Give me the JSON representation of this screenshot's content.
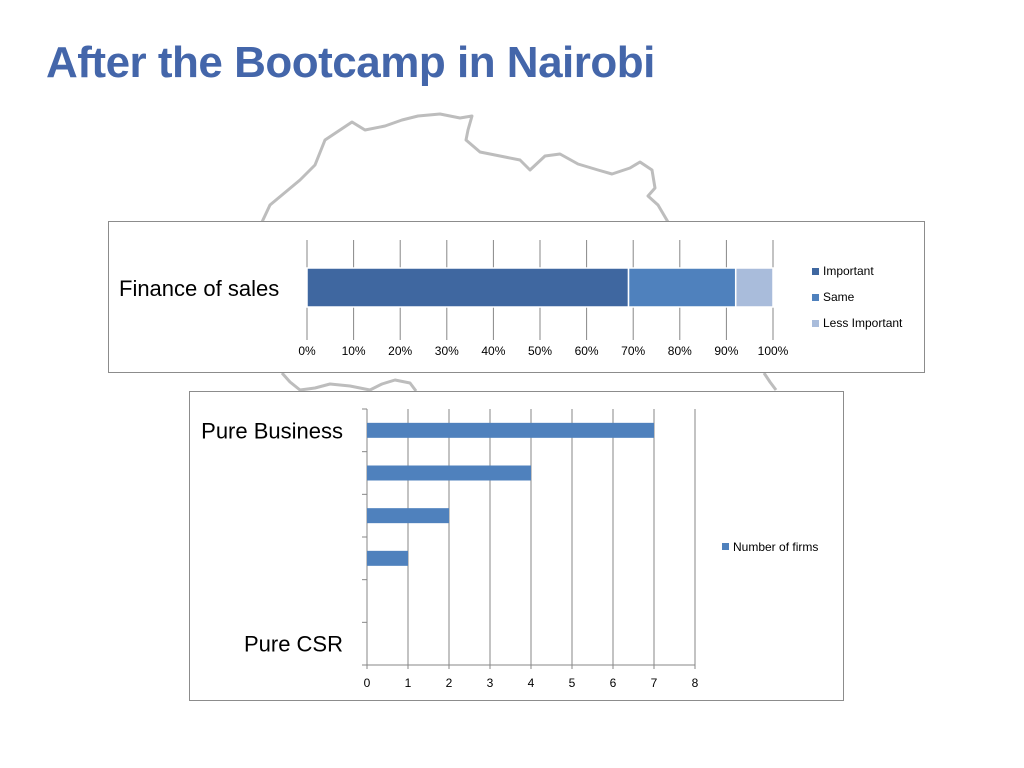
{
  "slide": {
    "title": "After the Bootcamp in Nairobi"
  },
  "colors": {
    "title": "#4466aa",
    "important": "#3f67a0",
    "same": "#4f81bd",
    "less_important": "#a9bcdb",
    "firms": "#4f81bd",
    "map_outline": "#bdbdbd"
  },
  "chart_data": [
    {
      "type": "bar",
      "stacked": true,
      "percent": true,
      "orientation": "horizontal",
      "categories": [
        "Finance of sales"
      ],
      "series": [
        {
          "name": "Important",
          "values": [
            69
          ]
        },
        {
          "name": "Same",
          "values": [
            23
          ]
        },
        {
          "name": "Less Important",
          "values": [
            8
          ]
        }
      ],
      "xlim": [
        0,
        100
      ],
      "xticks": [
        "0%",
        "10%",
        "20%",
        "30%",
        "40%",
        "50%",
        "60%",
        "70%",
        "80%",
        "90%",
        "100%"
      ],
      "grid": true,
      "legend": "right"
    },
    {
      "type": "bar",
      "orientation": "horizontal",
      "categories": [
        "Pure Business",
        "",
        "",
        "",
        "",
        "Pure CSR"
      ],
      "series": [
        {
          "name": "Number of firms",
          "values": [
            7,
            4,
            2,
            1,
            0,
            0
          ]
        }
      ],
      "xlim": [
        0,
        8
      ],
      "xticks": [
        "0",
        "1",
        "2",
        "3",
        "4",
        "5",
        "6",
        "7",
        "8"
      ],
      "grid": true,
      "legend": "right"
    }
  ]
}
